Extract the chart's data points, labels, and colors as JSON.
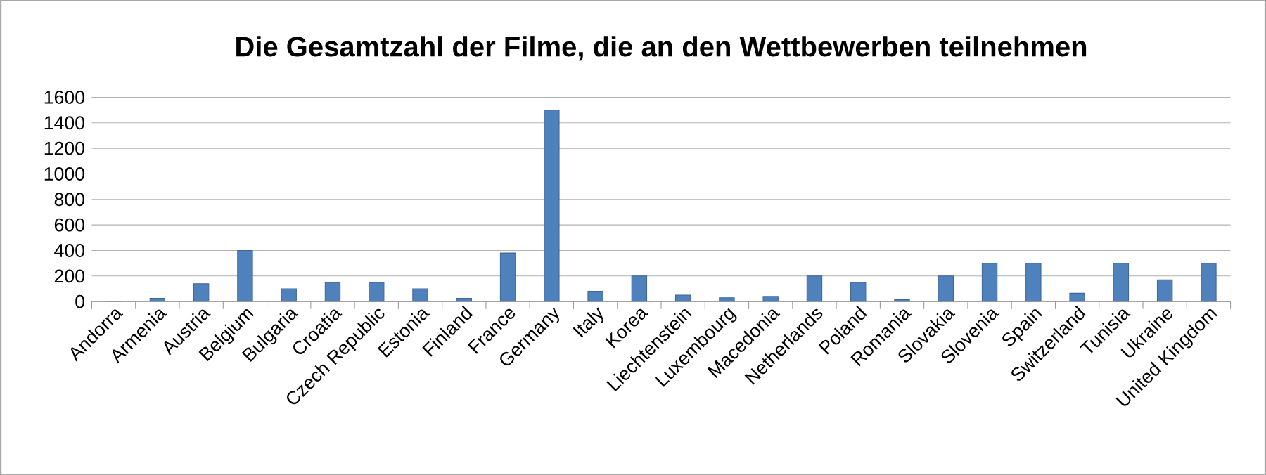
{
  "chart_data": {
    "type": "bar",
    "title": "Die Gesamtzahl der Filme, die an den Wettbewerben teilnehmen",
    "categories": [
      "Andorra",
      "Armenia",
      "Austria",
      "Belgium",
      "Bulgaria",
      "Croatia",
      "Czech Republic",
      "Estonia",
      "Finland",
      "France",
      "Germany",
      "Italy",
      "Korea",
      "Liechtenstein",
      "Luxembourg",
      "Macedonia",
      "Netherlands",
      "Poland",
      "Romania",
      "Slovakia",
      "Slovenia",
      "Spain",
      "Switzerland",
      "Tunisia",
      "Ukraine",
      "United Kingdom"
    ],
    "values": [
      0,
      25,
      140,
      400,
      100,
      150,
      150,
      100,
      25,
      380,
      1500,
      80,
      200,
      50,
      30,
      40,
      200,
      150,
      15,
      200,
      300,
      300,
      65,
      300,
      170,
      300
    ],
    "color": "#4f81bd",
    "ylim": [
      0,
      1600
    ],
    "yticks": [
      0,
      200,
      400,
      600,
      800,
      1000,
      1200,
      1400,
      1600
    ],
    "grid": "y"
  }
}
